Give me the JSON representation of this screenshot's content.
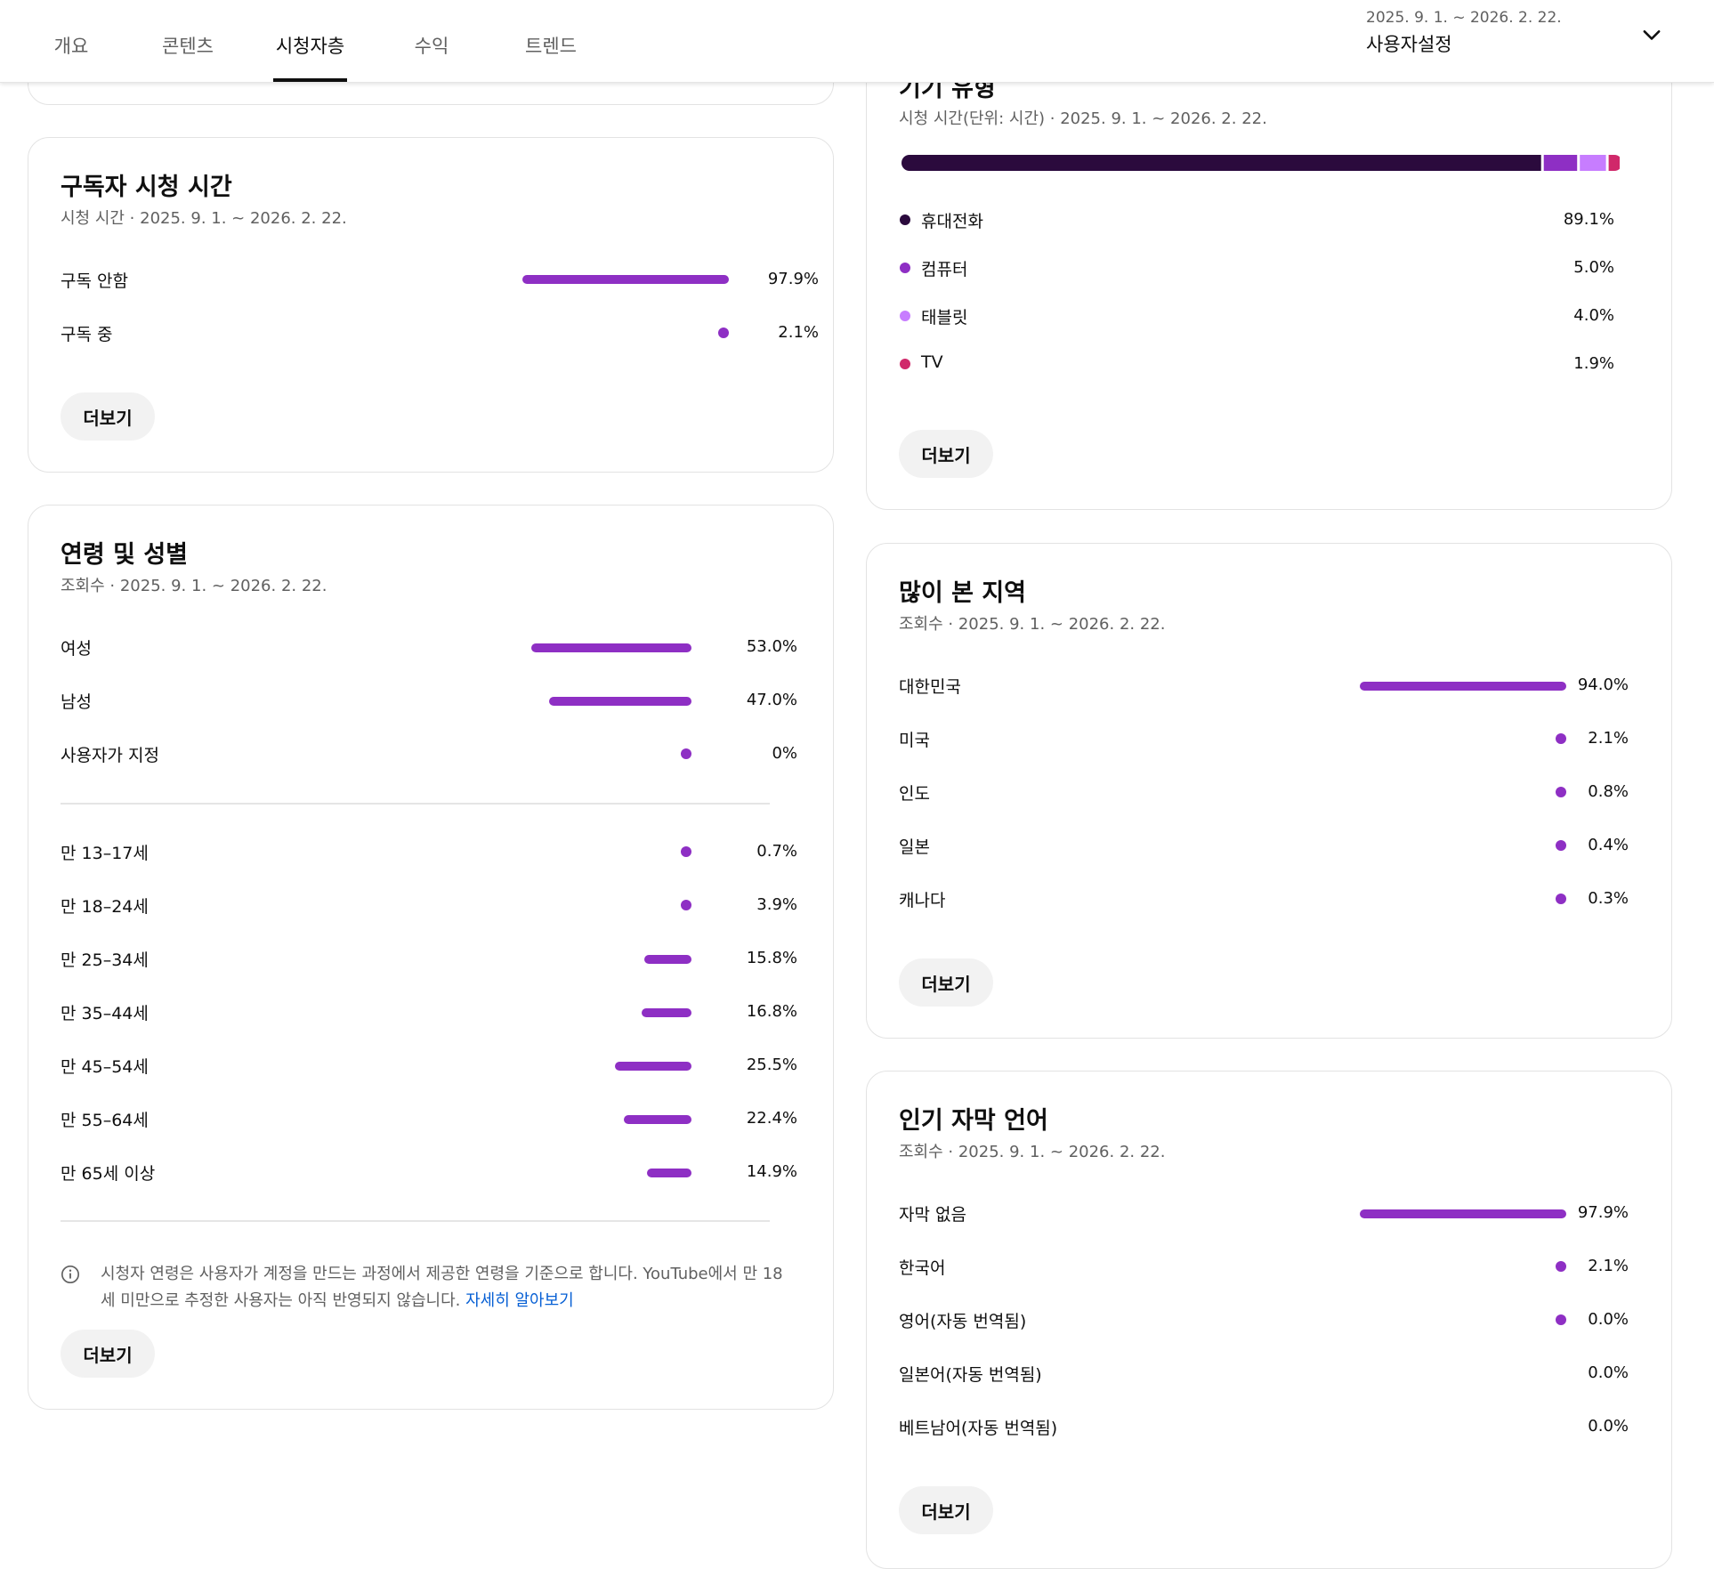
{
  "header": {
    "tabs": [
      {
        "label": "개요",
        "active": false
      },
      {
        "label": "콘텐츠",
        "active": false
      },
      {
        "label": "시청자층",
        "active": true
      },
      {
        "label": "수익",
        "active": false
      },
      {
        "label": "트렌드",
        "active": false
      }
    ],
    "date_range": "2025. 9. 1. ~ 2026. 2. 22.",
    "period_label": "사용자설정",
    "dropdown_icon": "chevron-down-icon"
  },
  "subscriber_watch_time": {
    "title": "구독자 시청 시간",
    "subtitle": "시청 시간 · 2025. 9. 1. ~ 2026. 2. 22.",
    "rows": [
      {
        "label": "구독 안함",
        "value": "97.9%",
        "percent": 97.9
      },
      {
        "label": "구독 중",
        "value": "2.1%",
        "percent": 2.1
      }
    ],
    "more_label": "더보기"
  },
  "age_gender": {
    "title": "연령 및 성별",
    "subtitle": "조회수 · 2025. 9. 1. ~ 2026. 2. 22.",
    "gender_rows": [
      {
        "label": "여성",
        "value": "53.0%",
        "percent": 53.0
      },
      {
        "label": "남성",
        "value": "47.0%",
        "percent": 47.0
      },
      {
        "label": "사용자가 지정",
        "value": "0%",
        "percent": 0
      }
    ],
    "age_rows": [
      {
        "label": "만 13–17세",
        "value": "0.7%",
        "percent": 0.7
      },
      {
        "label": "만 18–24세",
        "value": "3.9%",
        "percent": 3.9
      },
      {
        "label": "만 25–34세",
        "value": "15.8%",
        "percent": 15.8
      },
      {
        "label": "만 35–44세",
        "value": "16.8%",
        "percent": 16.8
      },
      {
        "label": "만 45–54세",
        "value": "25.5%",
        "percent": 25.5
      },
      {
        "label": "만 55–64세",
        "value": "22.4%",
        "percent": 22.4
      },
      {
        "label": "만 65세 이상",
        "value": "14.9%",
        "percent": 14.9
      }
    ],
    "note_text": "시청자 연령은 사용자가 계정을 만드는 과정에서 제공한 연령을 기준으로 합니다. YouTube에서 만 18세 미만으로 추정한 사용자는 아직 반영되지 않습니다. ",
    "note_link": "자세히 알아보기",
    "info_icon": "info-icon",
    "more_label": "더보기"
  },
  "device_type": {
    "title": "기기 유형",
    "subtitle": "시청 시간(단위: 시간) · 2025. 9. 1. ~ 2026. 2. 22.",
    "rows": [
      {
        "label": "휴대전화",
        "value": "89.1%",
        "percent": 89.1,
        "color": "#2b0a3d"
      },
      {
        "label": "컴퓨터",
        "value": "5.0%",
        "percent": 5.0,
        "color": "#8e2fc4"
      },
      {
        "label": "태블릿",
        "value": "4.0%",
        "percent": 4.0,
        "color": "#c77dff"
      },
      {
        "label": "TV",
        "value": "1.9%",
        "percent": 1.9,
        "color": "#d0286a"
      }
    ],
    "more_label": "더보기"
  },
  "top_geographies": {
    "title": "많이 본 지역",
    "subtitle": "조회수 · 2025. 9. 1. ~ 2026. 2. 22.",
    "rows": [
      {
        "label": "대한민국",
        "value": "94.0%",
        "percent": 94.0
      },
      {
        "label": "미국",
        "value": "2.1%",
        "percent": 2.1
      },
      {
        "label": "인도",
        "value": "0.8%",
        "percent": 0.8
      },
      {
        "label": "일본",
        "value": "0.4%",
        "percent": 0.4
      },
      {
        "label": "캐나다",
        "value": "0.3%",
        "percent": 0.3
      }
    ],
    "more_label": "더보기"
  },
  "subtitle_languages": {
    "title": "인기 자막 언어",
    "subtitle": "조회수 · 2025. 9. 1. ~ 2026. 2. 22.",
    "rows": [
      {
        "label": "자막 없음",
        "value": "97.9%",
        "percent": 97.9
      },
      {
        "label": "한국어",
        "value": "2.1%",
        "percent": 2.1
      },
      {
        "label": "영어(자동 번역됨)",
        "value": "0.0%",
        "percent": 0.04
      },
      {
        "label": "일본어(자동 번역됨)",
        "value": "0.0%",
        "percent": 0
      },
      {
        "label": "베트남어(자동 번역됨)",
        "value": "0.0%",
        "percent": 0
      }
    ],
    "more_label": "더보기"
  },
  "colors": {
    "accent": "#8e2fc4",
    "link": "#065fd4",
    "muted_text": "#606060"
  }
}
